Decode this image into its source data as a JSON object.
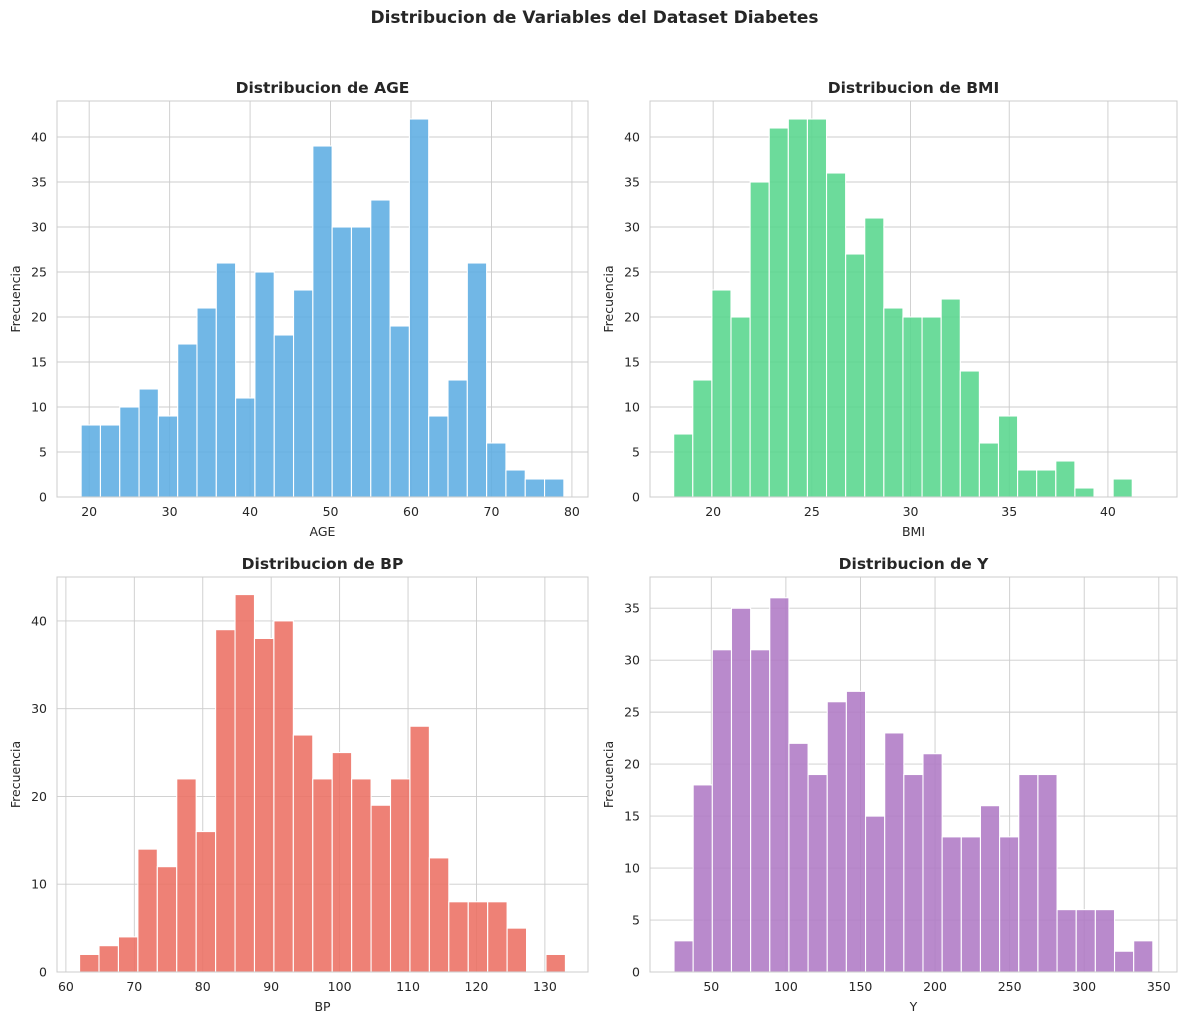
{
  "figure": {
    "suptitle": "Distribucion de Variables del Dataset Diabetes"
  },
  "chart_data": [
    {
      "type": "bar",
      "title": "Distribucion de AGE",
      "xlabel": "AGE",
      "ylabel": "Frecuencia",
      "color": "#5DADE2",
      "bin_start": 19,
      "bin_width": 2.4,
      "values": [
        8,
        8,
        10,
        12,
        9,
        17,
        21,
        26,
        11,
        25,
        18,
        23,
        39,
        30,
        30,
        33,
        19,
        42,
        9,
        13,
        26,
        6,
        3,
        2,
        2
      ],
      "xlim": [
        16,
        82
      ],
      "ylim": [
        0,
        44
      ],
      "xticks": [
        20,
        30,
        40,
        50,
        60,
        70,
        80
      ],
      "yticks": [
        0,
        5,
        10,
        15,
        20,
        25,
        30,
        35,
        40
      ],
      "grid": true
    },
    {
      "type": "bar",
      "title": "Distribucion de BMI",
      "xlabel": "BMI",
      "ylabel": "Frecuencia",
      "color": "#58D68D",
      "bin_start": 18,
      "bin_width": 0.968,
      "values": [
        7,
        13,
        23,
        20,
        35,
        41,
        42,
        42,
        36,
        27,
        31,
        21,
        20,
        20,
        22,
        14,
        6,
        9,
        3,
        3,
        4,
        1,
        0,
        2
      ],
      "xlim": [
        16.8,
        43.5
      ],
      "ylim": [
        0,
        44
      ],
      "xticks": [
        20,
        25,
        30,
        35,
        40
      ],
      "yticks": [
        0,
        5,
        10,
        15,
        20,
        25,
        30,
        35,
        40
      ],
      "grid": true
    },
    {
      "type": "bar",
      "title": "Distribucion de BP",
      "xlabel": "BP",
      "ylabel": "Frecuencia",
      "color": "#EC7063",
      "bin_start": 62,
      "bin_width": 2.84,
      "values": [
        2,
        3,
        4,
        14,
        12,
        22,
        16,
        39,
        43,
        38,
        40,
        27,
        22,
        25,
        22,
        19,
        22,
        28,
        13,
        8,
        8,
        8,
        5,
        0,
        2
      ],
      "xlim": [
        58.7,
        136.3
      ],
      "ylim": [
        0,
        45
      ],
      "xticks": [
        60,
        70,
        80,
        90,
        100,
        110,
        120,
        130
      ],
      "yticks": [
        0,
        10,
        20,
        30,
        40
      ],
      "grid": true
    },
    {
      "type": "bar",
      "title": "Distribucion de Y",
      "xlabel": "Y",
      "ylabel": "Frecuencia",
      "color": "#AF7AC5",
      "bin_start": 25,
      "bin_width": 12.84,
      "values": [
        3,
        18,
        31,
        35,
        31,
        36,
        22,
        19,
        26,
        27,
        15,
        23,
        19,
        21,
        13,
        13,
        16,
        13,
        19,
        19,
        6,
        6,
        6,
        2,
        3
      ],
      "xlim": [
        8.9,
        362.2
      ],
      "ylim": [
        0,
        38
      ],
      "xticks": [
        50,
        100,
        150,
        200,
        250,
        300,
        350
      ],
      "yticks": [
        0,
        5,
        10,
        15,
        20,
        25,
        30,
        35
      ],
      "grid": true
    }
  ]
}
